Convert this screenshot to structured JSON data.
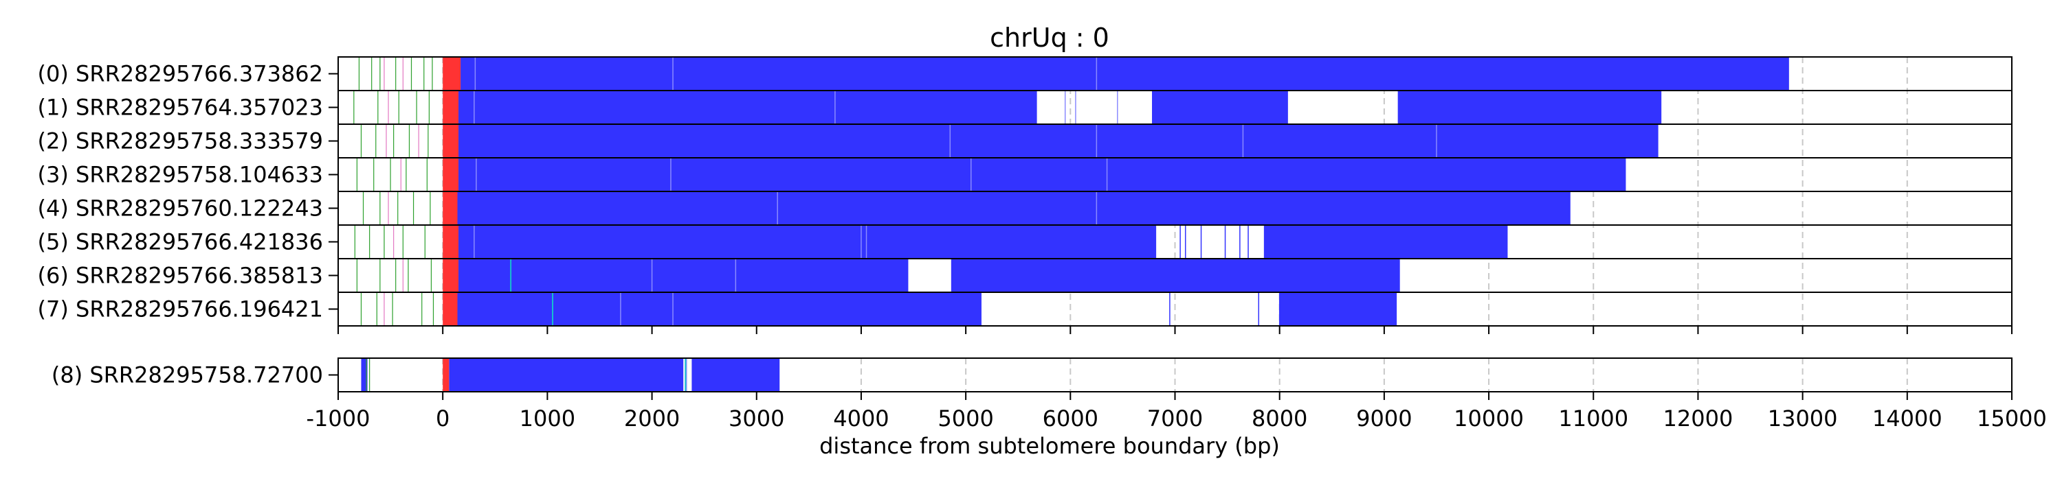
{
  "chart_data": {
    "type": "bar",
    "title": "chrUq : 0",
    "xlabel": "distance from subtelomere boundary (bp)",
    "ylabel": "",
    "xlim": [
      -1000,
      15000
    ],
    "xticks": [
      -1000,
      0,
      1000,
      2000,
      3000,
      4000,
      5000,
      6000,
      7000,
      8000,
      9000,
      10000,
      11000,
      12000,
      13000,
      14000,
      15000
    ],
    "xtick_labels": [
      "-1000",
      "0",
      "1000",
      "2000",
      "3000",
      "4000",
      "5000",
      "6000",
      "7000",
      "8000",
      "9000",
      "10000",
      "11000",
      "12000",
      "13000",
      "14000",
      "15000"
    ],
    "grid": "x-dashed",
    "colors": {
      "blue": "#3333ff",
      "red": "#ff3333",
      "green": "#2ca02c",
      "pink": "#e377c2",
      "cyan": "#17becf",
      "grid": "#c8c8c8"
    },
    "panels": [
      {
        "reads": [
          {
            "label": "(0) SRR28295766.373862",
            "red": [
              0,
              170
            ],
            "blue": [
              [
                170,
                12870
              ]
            ],
            "blue_ticks": [
              310,
              2200,
              6250
            ],
            "green": [
              -800,
              -680,
              -600,
              -450,
              -300,
              -180,
              -100
            ],
            "pink": [
              -560,
              -380
            ]
          },
          {
            "label": "(1) SRR28295764.357023",
            "red": [
              0,
              150
            ],
            "blue": [
              [
                150,
                5680
              ],
              [
                6780,
                8080
              ],
              [
                9130,
                11650
              ]
            ],
            "blue_ticks": [
              5950,
              6050,
              6450,
              300,
              3750
            ],
            "green": [
              -850,
              -620,
              -420,
              -250,
              -130
            ],
            "pink": [
              -520
            ]
          },
          {
            "label": "(2) SRR28295758.333579",
            "red": [
              0,
              150
            ],
            "blue": [
              [
                150,
                11620
              ]
            ],
            "blue_ticks": [
              4850,
              6250,
              7650,
              9500
            ],
            "green": [
              -780,
              -640,
              -470,
              -320,
              -140
            ],
            "pink": [
              -540,
              -230
            ]
          },
          {
            "label": "(3) SRR28295758.104633",
            "red": [
              0,
              150
            ],
            "blue": [
              [
                150,
                11310
              ]
            ],
            "blue_ticks": [
              320,
              2180,
              5050,
              6350
            ],
            "green": [
              -820,
              -660,
              -500,
              -350,
              -150
            ],
            "pink": [
              -400
            ]
          },
          {
            "label": "(4) SRR28295760.122243",
            "red": [
              0,
              140
            ],
            "blue": [
              [
                140,
                10780
              ]
            ],
            "blue_ticks": [
              6250,
              3200
            ],
            "green": [
              -760,
              -600,
              -430,
              -280,
              -120
            ],
            "pink": [
              -520
            ]
          },
          {
            "label": "(5) SRR28295766.421836",
            "red": [
              0,
              150
            ],
            "blue": [
              [
                150,
                6820
              ],
              [
                7850,
                10180
              ]
            ],
            "blue_ticks": [
              300,
              4000,
              4050
            ],
            "blue_lines": [
              7050,
              7100,
              7250,
              7480,
              7620,
              7700
            ],
            "green": [
              -840,
              -700,
              -560,
              -380,
              -170
            ],
            "pink": [
              -470
            ]
          },
          {
            "label": "(6) SRR28295766.385813",
            "red": [
              0,
              150
            ],
            "blue": [
              [
                150,
                4450
              ],
              [
                4860,
                9150
              ]
            ],
            "blue_ticks": [
              2000,
              2800
            ],
            "cyan": [
              650
            ],
            "green": [
              -820,
              -600,
              -450,
              -330,
              -110
            ],
            "pink": [
              -380
            ]
          },
          {
            "label": "(7) SRR28295766.196421",
            "red": [
              0,
              140
            ],
            "blue": [
              [
                140,
                5150
              ],
              [
                8000,
                9120
              ]
            ],
            "blue_ticks": [
              1700,
              2200
            ],
            "blue_lines": [
              6950,
              7800,
              8000
            ],
            "cyan": [
              1050
            ],
            "green": [
              -780,
              -630,
              -480,
              -200,
              -90
            ],
            "pink": [
              -560
            ]
          }
        ]
      },
      {
        "reads": [
          {
            "label": "(8) SRR28295758.72700",
            "red": [
              0,
              60
            ],
            "blue": [
              [
                -780,
                -720
              ],
              [
                60,
                2300
              ],
              [
                2380,
                3220
              ]
            ],
            "blue_ticks": [
              2330
            ],
            "cyan": [
              2320
            ],
            "green": [
              -730,
              -700
            ],
            "pink": []
          }
        ]
      }
    ]
  }
}
